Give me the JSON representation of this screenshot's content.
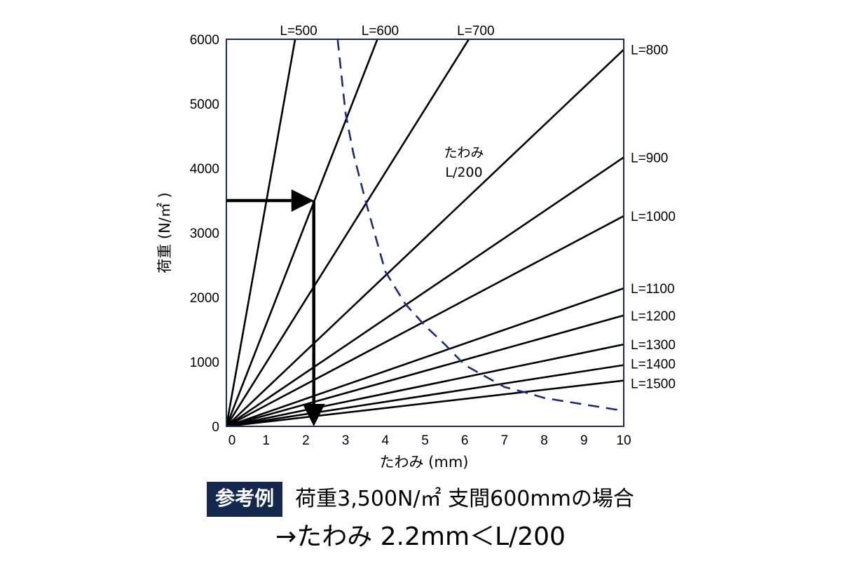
{
  "chart_data": {
    "type": "line",
    "xlabel": "たわみ (mm)",
    "ylabel": "荷重 (N/㎡ )",
    "xlim": [
      0,
      10
    ],
    "ylim": [
      0,
      6000
    ],
    "xticks": [
      "0",
      "1",
      "2",
      "3",
      "4",
      "5",
      "6",
      "7",
      "8",
      "9",
      "10"
    ],
    "yticks": [
      "0",
      "1000",
      "2000",
      "3000",
      "4000",
      "5000",
      "6000"
    ],
    "grid": false,
    "series": [
      {
        "name": "L=500",
        "x": [
          0,
          1.73
        ],
        "y": [
          0,
          6000
        ]
      },
      {
        "name": "L=600",
        "x": [
          0,
          3.8
        ],
        "y": [
          0,
          6000
        ]
      },
      {
        "name": "L=700",
        "x": [
          0,
          6.1
        ],
        "y": [
          0,
          6000
        ]
      },
      {
        "name": "L=800",
        "x": [
          0,
          10
        ],
        "y": [
          0,
          5840
        ]
      },
      {
        "name": "L=900",
        "x": [
          0,
          10
        ],
        "y": [
          0,
          4170
        ]
      },
      {
        "name": "L=1000",
        "x": [
          0,
          10
        ],
        "y": [
          0,
          3260
        ]
      },
      {
        "name": "L=1100",
        "x": [
          0,
          10
        ],
        "y": [
          0,
          2140
        ]
      },
      {
        "name": "L=1200",
        "x": [
          0,
          10
        ],
        "y": [
          0,
          1720
        ]
      },
      {
        "name": "L=1300",
        "x": [
          0,
          10
        ],
        "y": [
          0,
          1270
        ]
      },
      {
        "name": "L=1400",
        "x": [
          0,
          10
        ],
        "y": [
          0,
          950
        ]
      },
      {
        "name": "L=1500",
        "x": [
          0,
          10
        ],
        "y": [
          0,
          710
        ]
      }
    ],
    "curve": {
      "label": [
        "たわみ",
        "L/200"
      ],
      "style": "dashed",
      "color": "#1d2a7a",
      "x": [
        2.8,
        3.0,
        3.2,
        3.5,
        4.0,
        4.5,
        5.0,
        5.5,
        6.0,
        6.5,
        7.0,
        7.5,
        8.0,
        9.0,
        10.0
      ],
      "y": [
        6000,
        4850,
        4220,
        3500,
        2400,
        1900,
        1560,
        1270,
        950,
        780,
        610,
        530,
        440,
        340,
        240
      ]
    },
    "arrows": [
      {
        "from": [
          0,
          3500
        ],
        "to": [
          2.2,
          3500
        ]
      },
      {
        "from": [
          2.2,
          3500
        ],
        "to": [
          2.2,
          0
        ]
      }
    ],
    "colors": {
      "frame": "#1d2a5a",
      "lines": "#000000",
      "curve": "#1d2a7a"
    }
  },
  "caption": {
    "badge": "参考例",
    "line1": "荷重3,500N/㎡ 支間600mmの場合",
    "line2": "→たわみ 2.2mm＜L/200",
    "badge_color": "#14284f"
  }
}
